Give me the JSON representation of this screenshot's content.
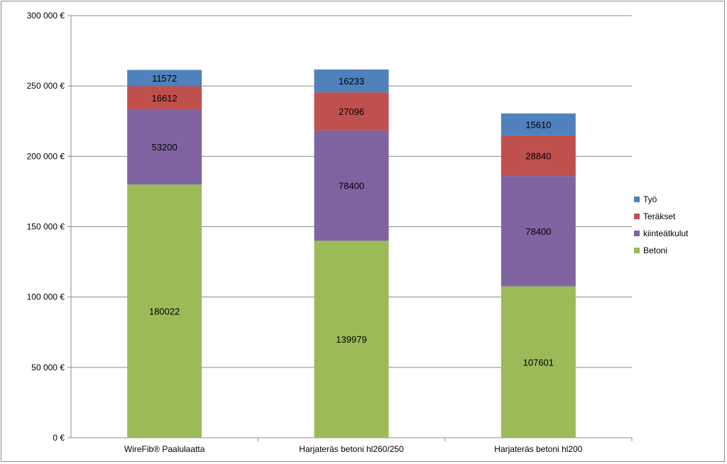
{
  "chart_data": {
    "type": "bar",
    "stacked": true,
    "categories": [
      "WireFib® Paalulaatta",
      "Harjateräs betoni hl260/250",
      "Harjateräs betoni hl200"
    ],
    "series": [
      {
        "name": "Betoni",
        "color": "#9bbb59",
        "values": [
          180022,
          139979,
          107601
        ]
      },
      {
        "name": "kiinteätkulut",
        "color": "#8064a2",
        "values": [
          53200,
          78400,
          78400
        ]
      },
      {
        "name": "Teräkset",
        "color": "#c0504d",
        "values": [
          16612,
          27096,
          28840
        ]
      },
      {
        "name": "Työ",
        "color": "#4f81bd",
        "values": [
          11572,
          16233,
          15610
        ]
      }
    ],
    "ylim": [
      0,
      300000
    ],
    "yticks": [
      0,
      50000,
      100000,
      150000,
      200000,
      250000,
      300000
    ],
    "ytick_labels": [
      "0 €",
      "50 000 €",
      "100 000 €",
      "150 000 €",
      "200 000 €",
      "250 000 €",
      "300 000 €"
    ],
    "grid": true,
    "legend_position": "right",
    "legend_order": [
      "Työ",
      "Teräkset",
      "kiinteätkulut",
      "Betoni"
    ]
  }
}
